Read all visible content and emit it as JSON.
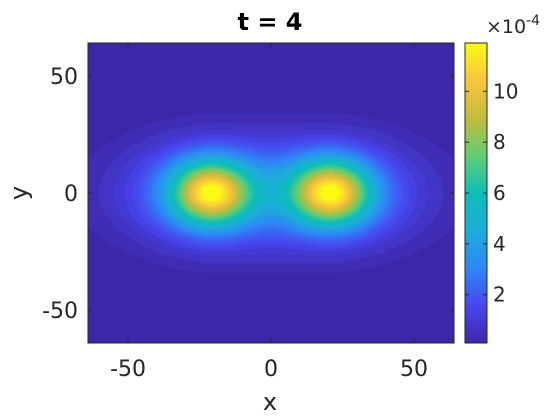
{
  "chart_data": {
    "type": "heatmap",
    "title": "t = 4",
    "xlabel": "x",
    "ylabel": "y",
    "xlim": [
      -64,
      64
    ],
    "ylim": [
      -64,
      64
    ],
    "x_ticks": [
      -50,
      0,
      50
    ],
    "y_ticks": [
      50,
      0,
      -50
    ],
    "x_tick_labels": [
      "-50",
      "0",
      "50"
    ],
    "y_tick_labels": [
      "50",
      "0",
      "-50"
    ],
    "colormap": "parula",
    "colorbar": {
      "range": [
        0.1,
        11.9
      ],
      "ticks": [
        2,
        4,
        6,
        8,
        10
      ],
      "tick_labels": [
        "2",
        "4",
        "6",
        "8",
        "10"
      ],
      "multiplier": "×10",
      "multiplier_exponent": "-4"
    },
    "features": [
      {
        "type": "peak",
        "x": -21,
        "y": 0,
        "value": 11.8
      },
      {
        "type": "peak",
        "x": 21,
        "y": 0,
        "value": 11.8
      }
    ],
    "colors": {
      "background": "#ffffff",
      "axis": "#262626",
      "low": "#3e26a8",
      "high": "#f9fb15"
    }
  }
}
